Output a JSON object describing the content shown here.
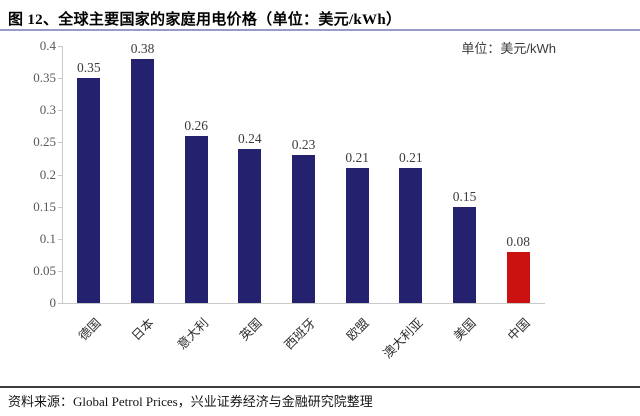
{
  "header": {
    "title": "图 12、全球主要国家的家庭用电价格（单位：美元/kWh）"
  },
  "legend": {
    "unit_label": "单位：美元/kWh"
  },
  "footer": {
    "source": "资料来源：Global Petrol Prices，兴业证券经济与金融研究院整理"
  },
  "colors": {
    "bar_default": "#24216e",
    "bar_highlight": "#cc1111",
    "axis": "#c9c9c9",
    "y_label": "#595959",
    "value_label": "#3d3d3d",
    "title_rule": "#9a9ac9",
    "footer_rule": "#3c3c3c"
  },
  "chart_data": {
    "type": "bar",
    "title": "全球主要国家的家庭用电价格",
    "xlabel": "",
    "ylabel": "美元/kWh",
    "categories": [
      "德国",
      "日本",
      "意大利",
      "英国",
      "西班牙",
      "欧盟",
      "澳大利亚",
      "美国",
      "中国"
    ],
    "values": [
      0.35,
      0.38,
      0.26,
      0.24,
      0.23,
      0.21,
      0.21,
      0.15,
      0.08
    ],
    "data_labels": [
      "0.35",
      "0.38",
      "0.26",
      "0.24",
      "0.23",
      "0.21",
      "0.21",
      "0.15",
      "0.08"
    ],
    "highlight_index": 8,
    "ylim": [
      0,
      0.4
    ],
    "y_ticks": [
      "0.4",
      "0.35",
      "0.3",
      "0.25",
      "0.2",
      "0.15",
      "0.1",
      "0.05",
      "0"
    ],
    "grid": "off",
    "legend_position": "top-right"
  }
}
